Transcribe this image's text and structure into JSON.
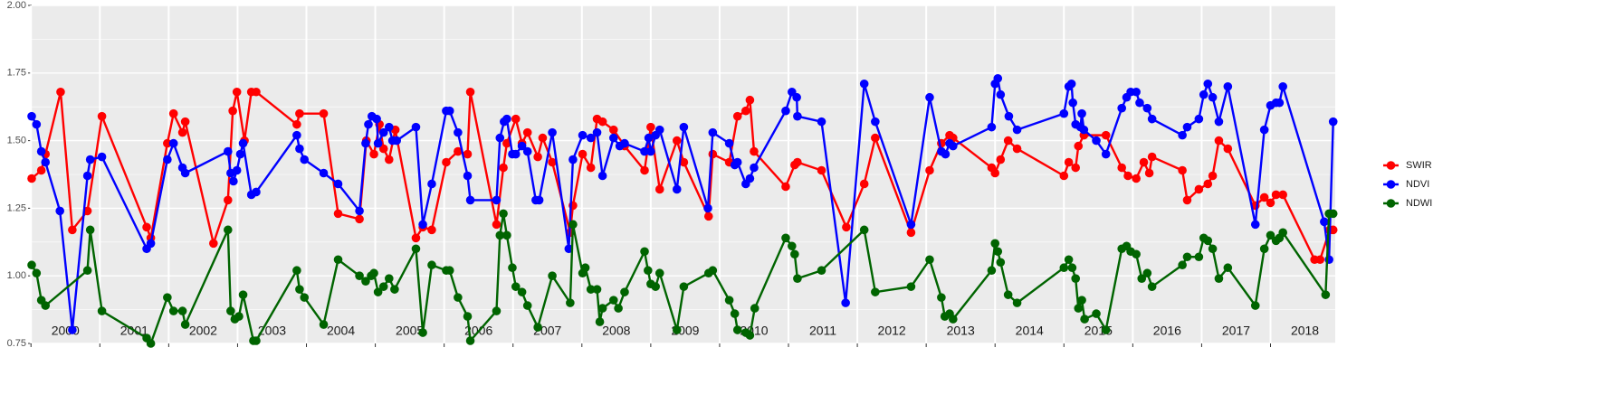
{
  "chart_data": {
    "type": "line",
    "xlim": [
      2000.01,
      2018.94
    ],
    "xticks": [
      2000,
      2001,
      2002,
      2003,
      2004,
      2005,
      2006,
      2007,
      2008,
      2009,
      2010,
      2011,
      2012,
      2013,
      2014,
      2015,
      2016,
      2017,
      2018
    ],
    "ylim": [
      0.75,
      2.0
    ],
    "yticks": [
      {
        "value": 0.75,
        "label": "0.75"
      },
      {
        "value": 1.0,
        "label": "1.00"
      },
      {
        "value": 1.25,
        "label": "1.25"
      },
      {
        "value": 1.5,
        "label": "1.50"
      },
      {
        "value": 1.75,
        "label": "1.75"
      },
      {
        "value": 2.0,
        "label": "2.00"
      }
    ],
    "grid": true,
    "legend": "right",
    "series": [
      {
        "name": "SWIR",
        "color": "#ff0000",
        "x": [
          2000.01,
          2000.15,
          2000.21,
          2000.43,
          2000.6,
          2000.82,
          2001.03,
          2001.68,
          2001.74,
          2001.98,
          2002.07,
          2002.2,
          2002.24,
          2002.65,
          2002.86,
          2002.93,
          2002.99,
          2003.1,
          2003.2,
          2003.27,
          2003.86,
          2003.9,
          2004.25,
          2004.46,
          2004.77,
          2004.87,
          2004.98,
          2005.06,
          2005.12,
          2005.2,
          2005.29,
          2005.59,
          2005.69,
          2005.82,
          2006.03,
          2006.2,
          2006.34,
          2006.38,
          2006.76,
          2006.86,
          2006.91,
          2007.04,
          2007.13,
          2007.21,
          2007.36,
          2007.43,
          2007.57,
          2007.83,
          2007.87,
          2008.01,
          2008.13,
          2008.22,
          2008.3,
          2008.46,
          2008.62,
          2008.91,
          2009.0,
          2009.13,
          2009.38,
          2009.48,
          2009.84,
          2009.9,
          2010.14,
          2010.26,
          2010.38,
          2010.44,
          2010.5,
          2010.96,
          2011.09,
          2011.13,
          2011.48,
          2011.84,
          2012.1,
          2012.26,
          2012.78,
          2013.05,
          2013.22,
          2013.34,
          2013.39,
          2013.95,
          2014.0,
          2014.08,
          2014.19,
          2014.32,
          2015.0,
          2015.07,
          2015.17,
          2015.21,
          2015.29,
          2015.61,
          2015.84,
          2015.93,
          2016.05,
          2016.16,
          2016.24,
          2016.28,
          2016.72,
          2016.79,
          2016.96,
          2017.09,
          2017.16,
          2017.25,
          2017.38,
          2017.78,
          2017.91,
          2018.0,
          2018.08,
          2018.18,
          2018.64,
          2018.72,
          2018.86,
          2018.91
        ],
        "values": [
          1.36,
          1.39,
          1.45,
          1.68,
          1.17,
          1.24,
          1.59,
          1.18,
          1.14,
          1.49,
          1.6,
          1.53,
          1.57,
          1.12,
          1.28,
          1.61,
          1.68,
          1.5,
          1.68,
          1.68,
          1.56,
          1.6,
          1.6,
          1.23,
          1.21,
          1.5,
          1.45,
          1.56,
          1.47,
          1.43,
          1.54,
          1.14,
          1.18,
          1.17,
          1.42,
          1.46,
          1.45,
          1.68,
          1.19,
          1.4,
          1.49,
          1.58,
          1.49,
          1.53,
          1.44,
          1.51,
          1.42,
          1.16,
          1.26,
          1.45,
          1.4,
          1.58,
          1.57,
          1.54,
          1.48,
          1.39,
          1.55,
          1.32,
          1.5,
          1.42,
          1.22,
          1.45,
          1.42,
          1.59,
          1.61,
          1.65,
          1.46,
          1.33,
          1.41,
          1.42,
          1.39,
          1.18,
          1.34,
          1.51,
          1.16,
          1.39,
          1.49,
          1.52,
          1.51,
          1.4,
          1.38,
          1.43,
          1.5,
          1.47,
          1.37,
          1.42,
          1.4,
          1.48,
          1.52,
          1.52,
          1.4,
          1.37,
          1.36,
          1.42,
          1.38,
          1.44,
          1.39,
          1.28,
          1.32,
          1.34,
          1.37,
          1.5,
          1.47,
          1.26,
          1.29,
          1.27,
          1.3,
          1.3,
          1.06,
          1.06,
          1.17,
          1.17
        ]
      },
      {
        "name": "NDVI",
        "color": "#0000ff",
        "x": [
          2000.01,
          2000.08,
          2000.15,
          2000.21,
          2000.42,
          2000.6,
          2000.82,
          2000.86,
          2001.03,
          2001.68,
          2001.74,
          2001.98,
          2002.07,
          2002.2,
          2002.24,
          2002.86,
          2002.9,
          2002.94,
          2002.99,
          2003.04,
          2003.08,
          2003.2,
          2003.27,
          2003.86,
          2003.9,
          2003.97,
          2004.25,
          2004.46,
          2004.77,
          2004.86,
          2004.9,
          2004.95,
          2005.02,
          2005.04,
          2005.12,
          2005.2,
          2005.25,
          2005.31,
          2005.59,
          2005.69,
          2005.82,
          2006.03,
          2006.08,
          2006.2,
          2006.34,
          2006.38,
          2006.76,
          2006.81,
          2006.87,
          2006.91,
          2006.99,
          2007.04,
          2007.13,
          2007.21,
          2007.33,
          2007.38,
          2007.57,
          2007.81,
          2007.87,
          2008.01,
          2008.13,
          2008.22,
          2008.3,
          2008.46,
          2008.55,
          2008.62,
          2008.91,
          2008.97,
          2009.0,
          2009.07,
          2009.13,
          2009.38,
          2009.48,
          2009.83,
          2009.9,
          2010.14,
          2010.22,
          2010.26,
          2010.38,
          2010.44,
          2010.5,
          2010.96,
          2011.05,
          2011.12,
          2011.13,
          2011.48,
          2011.83,
          2012.1,
          2012.26,
          2012.78,
          2013.05,
          2013.22,
          2013.28,
          2013.34,
          2013.39,
          2013.95,
          2014.0,
          2014.04,
          2014.08,
          2014.2,
          2014.32,
          2015.0,
          2015.07,
          2015.11,
          2015.13,
          2015.17,
          2015.24,
          2015.26,
          2015.29,
          2015.47,
          2015.61,
          2015.84,
          2015.91,
          2015.97,
          2016.05,
          2016.1,
          2016.21,
          2016.28,
          2016.72,
          2016.79,
          2016.96,
          2017.03,
          2017.09,
          2017.16,
          2017.25,
          2017.38,
          2017.78,
          2017.91,
          2018.0,
          2018.08,
          2018.13,
          2018.18,
          2018.78,
          2018.85,
          2018.91
        ],
        "values": [
          1.59,
          1.56,
          1.46,
          1.42,
          1.24,
          0.8,
          1.37,
          1.43,
          1.44,
          1.1,
          1.12,
          1.43,
          1.49,
          1.4,
          1.38,
          1.46,
          1.38,
          1.35,
          1.39,
          1.45,
          1.49,
          1.3,
          1.31,
          1.52,
          1.47,
          1.43,
          1.38,
          1.34,
          1.24,
          1.49,
          1.56,
          1.59,
          1.58,
          1.49,
          1.53,
          1.55,
          1.5,
          1.5,
          1.55,
          1.19,
          1.34,
          1.61,
          1.61,
          1.53,
          1.37,
          1.28,
          1.28,
          1.51,
          1.57,
          1.58,
          1.45,
          1.45,
          1.48,
          1.46,
          1.28,
          1.28,
          1.53,
          1.1,
          1.43,
          1.52,
          1.51,
          1.53,
          1.37,
          1.51,
          1.48,
          1.49,
          1.46,
          1.51,
          1.46,
          1.52,
          1.54,
          1.32,
          1.55,
          1.25,
          1.53,
          1.49,
          1.41,
          1.42,
          1.34,
          1.36,
          1.4,
          1.61,
          1.68,
          1.66,
          1.59,
          1.57,
          0.9,
          1.71,
          1.57,
          1.19,
          1.66,
          1.46,
          1.45,
          1.49,
          1.48,
          1.55,
          1.71,
          1.73,
          1.67,
          1.59,
          1.54,
          1.6,
          1.7,
          1.71,
          1.64,
          1.56,
          1.55,
          1.6,
          1.54,
          1.5,
          1.45,
          1.62,
          1.66,
          1.68,
          1.68,
          1.64,
          1.62,
          1.58,
          1.52,
          1.55,
          1.58,
          1.67,
          1.71,
          1.66,
          1.57,
          1.7,
          1.19,
          1.54,
          1.63,
          1.64,
          1.64,
          1.7,
          1.2,
          1.06,
          1.57
        ]
      },
      {
        "name": "NDWI",
        "color": "#006400",
        "x": [
          2000.01,
          2000.08,
          2000.15,
          2000.21,
          2000.82,
          2000.86,
          2001.03,
          2001.68,
          2001.74,
          2001.98,
          2002.07,
          2002.2,
          2002.24,
          2002.86,
          2002.9,
          2002.96,
          2003.02,
          2003.08,
          2003.23,
          2003.27,
          2003.86,
          2003.9,
          2003.97,
          2004.25,
          2004.46,
          2004.77,
          2004.86,
          2004.94,
          2004.98,
          2005.04,
          2005.12,
          2005.2,
          2005.28,
          2005.59,
          2005.69,
          2005.82,
          2006.03,
          2006.08,
          2006.2,
          2006.34,
          2006.38,
          2006.76,
          2006.81,
          2006.86,
          2006.91,
          2006.99,
          2007.04,
          2007.13,
          2007.21,
          2007.36,
          2007.57,
          2007.83,
          2007.87,
          2008.01,
          2008.05,
          2008.13,
          2008.22,
          2008.26,
          2008.3,
          2008.46,
          2008.53,
          2008.62,
          2008.91,
          2008.96,
          2009.0,
          2009.07,
          2009.13,
          2009.38,
          2009.48,
          2009.84,
          2009.9,
          2010.14,
          2010.22,
          2010.26,
          2010.38,
          2010.44,
          2010.51,
          2010.96,
          2011.05,
          2011.09,
          2011.13,
          2011.48,
          2012.1,
          2012.26,
          2012.78,
          2013.05,
          2013.22,
          2013.27,
          2013.34,
          2013.39,
          2013.95,
          2014.0,
          2014.04,
          2014.08,
          2014.19,
          2014.32,
          2015.0,
          2015.07,
          2015.12,
          2015.17,
          2015.21,
          2015.26,
          2015.3,
          2015.47,
          2015.61,
          2015.84,
          2015.91,
          2015.97,
          2016.05,
          2016.13,
          2016.21,
          2016.28,
          2016.72,
          2016.79,
          2016.96,
          2017.03,
          2017.09,
          2017.16,
          2017.25,
          2017.38,
          2017.78,
          2017.91,
          2018.0,
          2018.08,
          2018.13,
          2018.18,
          2018.8,
          2018.85,
          2018.91
        ],
        "values": [
          1.04,
          1.01,
          0.91,
          0.89,
          1.02,
          1.17,
          0.87,
          0.77,
          0.75,
          0.92,
          0.87,
          0.87,
          0.82,
          1.17,
          0.87,
          0.84,
          0.85,
          0.93,
          0.76,
          0.76,
          1.02,
          0.95,
          0.92,
          0.82,
          1.06,
          1.0,
          0.98,
          1.0,
          1.01,
          0.94,
          0.96,
          0.99,
          0.95,
          1.1,
          0.79,
          1.04,
          1.02,
          1.02,
          0.92,
          0.85,
          0.76,
          0.87,
          1.15,
          1.23,
          1.15,
          1.03,
          0.96,
          0.94,
          0.89,
          0.81,
          1.0,
          0.9,
          1.19,
          1.01,
          1.03,
          0.95,
          0.95,
          0.83,
          0.88,
          0.91,
          0.88,
          0.94,
          1.09,
          1.02,
          0.97,
          0.96,
          1.01,
          0.8,
          0.96,
          1.01,
          1.02,
          0.91,
          0.86,
          0.8,
          0.79,
          0.78,
          0.88,
          1.14,
          1.11,
          1.08,
          0.99,
          1.02,
          1.17,
          0.94,
          0.96,
          1.06,
          0.92,
          0.85,
          0.86,
          0.84,
          1.02,
          1.12,
          1.09,
          1.05,
          0.93,
          0.9,
          1.03,
          1.06,
          1.03,
          0.99,
          0.88,
          0.91,
          0.84,
          0.86,
          0.8,
          1.1,
          1.11,
          1.09,
          1.08,
          0.99,
          1.01,
          0.96,
          1.04,
          1.07,
          1.07,
          1.14,
          1.13,
          1.1,
          0.99,
          1.03,
          0.89,
          1.1,
          1.15,
          1.13,
          1.14,
          1.16,
          0.93,
          1.23,
          1.23
        ]
      }
    ]
  }
}
